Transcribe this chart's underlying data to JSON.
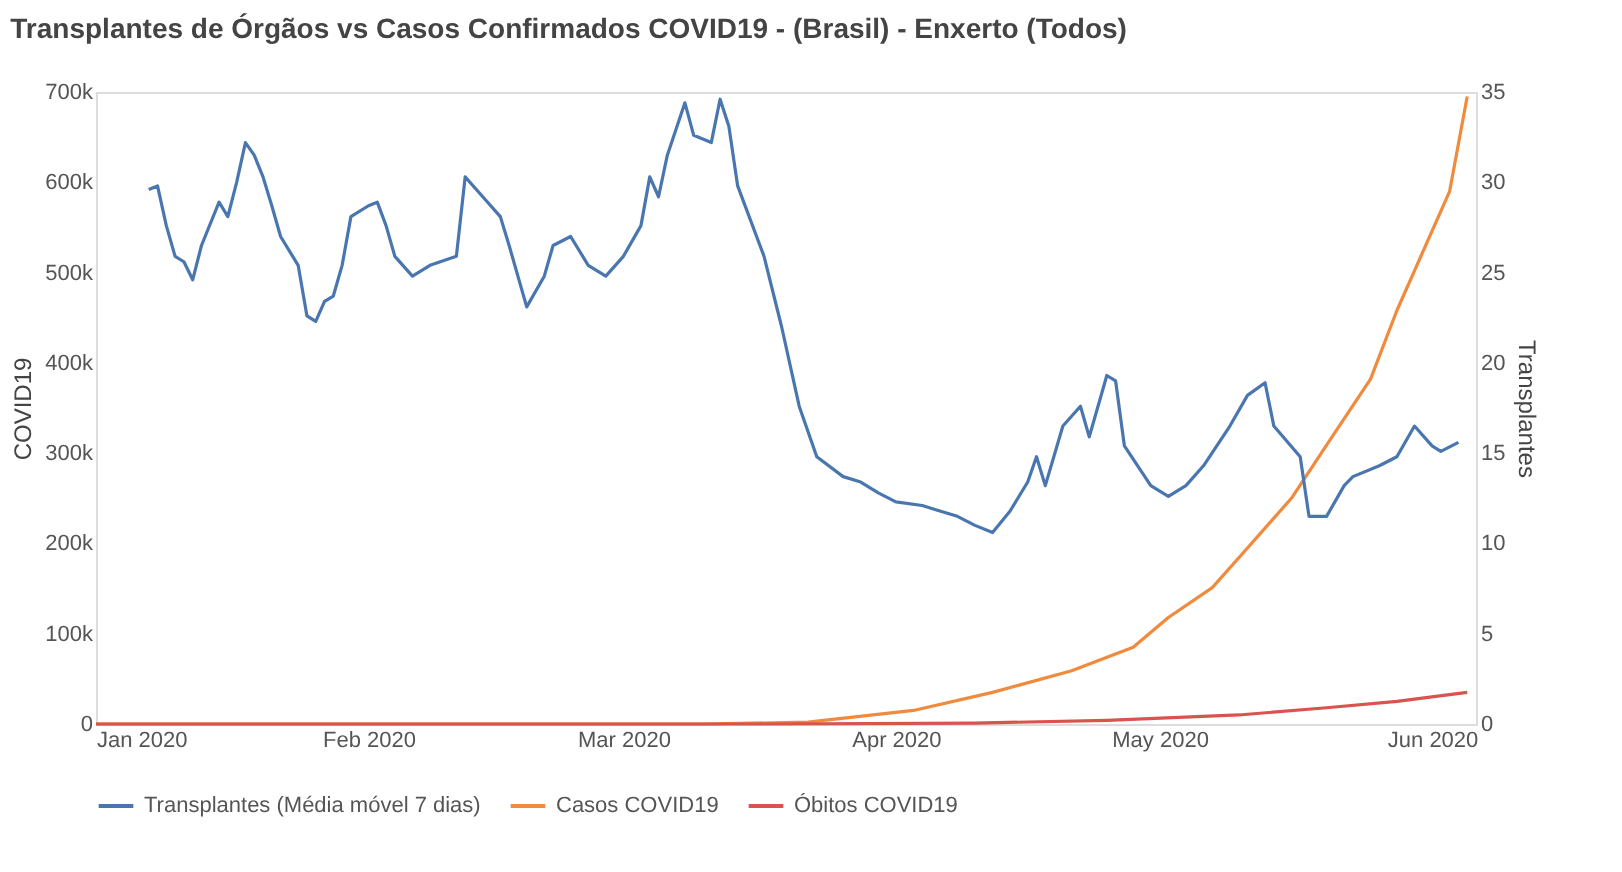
{
  "chart_data": {
    "type": "line",
    "title": "Transplantes de Órgãos vs Casos Confirmados COVID19 - (Brasil) - Enxerto (Todos)",
    "ylabel": "COVID19",
    "y2label": "Transplantes",
    "xlim": [
      "2020-01-01",
      "2020-06-06"
    ],
    "xticks": [
      {
        "value": "2020-01-01",
        "label": "Jan 2020"
      },
      {
        "value": "2020-02-01",
        "label": "Feb 2020"
      },
      {
        "value": "2020-03-01",
        "label": "Mar 2020"
      },
      {
        "value": "2020-04-01",
        "label": "Apr 2020"
      },
      {
        "value": "2020-05-01",
        "label": "May 2020"
      },
      {
        "value": "2020-06-01",
        "label": "Jun 2020"
      }
    ],
    "ylim": [
      0,
      700000
    ],
    "yticks": [
      0,
      {
        "value": 100000,
        "label": "100k"
      },
      {
        "value": 200000,
        "label": "200k"
      },
      {
        "value": 300000,
        "label": "300k"
      },
      {
        "value": 400000,
        "label": "400k"
      },
      {
        "value": 500000,
        "label": "500k"
      },
      {
        "value": 600000,
        "label": "600k"
      },
      {
        "value": 700000,
        "label": "700k"
      }
    ],
    "y2lim": [
      0,
      35
    ],
    "y2ticks": [
      0,
      5,
      10,
      15,
      20,
      25,
      30,
      35
    ],
    "legend": "bottom",
    "grid": false,
    "marker": "none",
    "line_style": "solid",
    "series": [
      {
        "name": "Transplantes (Média móvel 7 dias)",
        "color": "#4a76b0",
        "axis": "y2",
        "x": [
          "2020-01-07",
          "2020-01-08",
          "2020-01-09",
          "2020-01-10",
          "2020-01-11",
          "2020-01-12",
          "2020-01-13",
          "2020-01-15",
          "2020-01-16",
          "2020-01-17",
          "2020-01-18",
          "2020-01-19",
          "2020-01-20",
          "2020-01-21",
          "2020-01-22",
          "2020-01-24",
          "2020-01-25",
          "2020-01-26",
          "2020-01-27",
          "2020-01-28",
          "2020-01-29",
          "2020-01-30",
          "2020-02-01",
          "2020-02-02",
          "2020-02-03",
          "2020-02-04",
          "2020-02-06",
          "2020-02-08",
          "2020-02-11",
          "2020-02-12",
          "2020-02-14",
          "2020-02-16",
          "2020-02-17",
          "2020-02-19",
          "2020-02-21",
          "2020-02-22",
          "2020-02-24",
          "2020-02-26",
          "2020-02-28",
          "2020-03-01",
          "2020-03-03",
          "2020-03-04",
          "2020-03-05",
          "2020-03-06",
          "2020-03-08",
          "2020-03-09",
          "2020-03-11",
          "2020-03-12",
          "2020-03-13",
          "2020-03-14",
          "2020-03-17",
          "2020-03-19",
          "2020-03-21",
          "2020-03-23",
          "2020-03-26",
          "2020-03-28",
          "2020-03-30",
          "2020-04-01",
          "2020-04-04",
          "2020-04-06",
          "2020-04-08",
          "2020-04-10",
          "2020-04-12",
          "2020-04-14",
          "2020-04-16",
          "2020-04-17",
          "2020-04-18",
          "2020-04-20",
          "2020-04-22",
          "2020-04-23",
          "2020-04-25",
          "2020-04-26",
          "2020-04-27",
          "2020-04-30",
          "2020-05-02",
          "2020-05-04",
          "2020-05-06",
          "2020-05-09",
          "2020-05-11",
          "2020-05-13",
          "2020-05-14",
          "2020-05-17",
          "2020-05-18",
          "2020-05-20",
          "2020-05-22",
          "2020-05-23",
          "2020-05-26",
          "2020-05-28",
          "2020-05-30",
          "2020-06-01",
          "2020-06-02",
          "2020-06-04"
        ],
        "values": [
          29.6,
          29.8,
          27.6,
          25.9,
          25.6,
          24.6,
          26.5,
          28.9,
          28.1,
          30.0,
          32.2,
          31.5,
          30.3,
          28.7,
          27.0,
          25.4,
          22.6,
          22.3,
          23.4,
          23.7,
          25.4,
          28.1,
          28.7,
          28.9,
          27.6,
          25.9,
          24.8,
          25.4,
          25.9,
          30.3,
          29.2,
          28.1,
          26.5,
          23.1,
          24.8,
          26.5,
          27.0,
          25.4,
          24.8,
          25.9,
          27.6,
          30.3,
          29.2,
          31.5,
          34.4,
          32.6,
          32.2,
          34.6,
          33.1,
          29.8,
          25.9,
          22.0,
          17.6,
          14.8,
          13.7,
          13.4,
          12.8,
          12.3,
          12.1,
          11.8,
          11.5,
          11.0,
          10.6,
          11.8,
          13.4,
          14.8,
          13.2,
          16.5,
          17.6,
          15.9,
          19.3,
          19.0,
          15.4,
          13.2,
          12.6,
          13.2,
          14.3,
          16.5,
          18.2,
          18.9,
          16.5,
          14.8,
          11.5,
          11.5,
          13.2,
          13.7,
          14.3,
          14.8,
          16.5,
          15.4,
          15.1,
          15.6
        ]
      },
      {
        "name": "Casos COVID19",
        "color": "#f08a3c",
        "x": [
          "2020-01-01",
          "2020-02-26",
          "2020-03-10",
          "2020-03-22",
          "2020-04-03",
          "2020-04-12",
          "2020-04-21",
          "2020-04-28",
          "2020-05-02",
          "2020-05-07",
          "2020-05-11",
          "2020-05-16",
          "2020-05-20",
          "2020-05-25",
          "2020-05-28",
          "2020-05-31",
          "2020-06-03",
          "2020-06-05"
        ],
        "values": [
          0,
          0,
          0,
          2000,
          15000,
          35000,
          59000,
          85000,
          118000,
          151000,
          195000,
          250000,
          309000,
          382000,
          458000,
          524000,
          590000,
          695000
        ]
      },
      {
        "name": "Óbitos COVID19",
        "color": "#d9534f",
        "x": [
          "2020-01-01",
          "2020-03-17",
          "2020-04-10",
          "2020-04-25",
          "2020-05-10",
          "2020-05-20",
          "2020-05-28",
          "2020-06-05"
        ],
        "values": [
          0,
          0,
          1000,
          4000,
          10000,
          18000,
          25000,
          35000
        ]
      }
    ]
  }
}
